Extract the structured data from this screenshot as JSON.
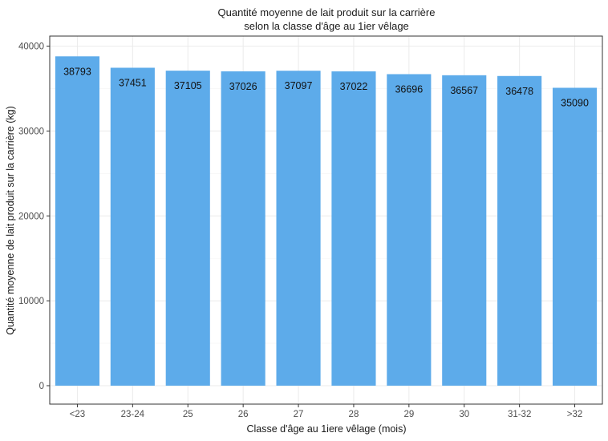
{
  "chart_data": {
    "type": "bar",
    "title_line1": "Quantité moyenne de lait produit sur la carrière",
    "title_line2": "selon la classe d'âge au 1ier vêlage",
    "xlabel": "Classe d'âge au 1iere vêlage (mois)",
    "ylabel": "Quantité moyenne de lait produit sur la carrière (kg)",
    "categories": [
      "<23",
      "23-24",
      "25",
      "26",
      "27",
      "28",
      "29",
      "30",
      "31-32",
      ">32"
    ],
    "values": [
      38793,
      37451,
      37105,
      37026,
      37097,
      37022,
      36696,
      36567,
      36478,
      35090
    ],
    "ylim": [
      0,
      41500
    ],
    "yticks": [
      0,
      10000,
      20000,
      30000,
      40000
    ],
    "grid": true,
    "bar_color": "#5dabea"
  }
}
